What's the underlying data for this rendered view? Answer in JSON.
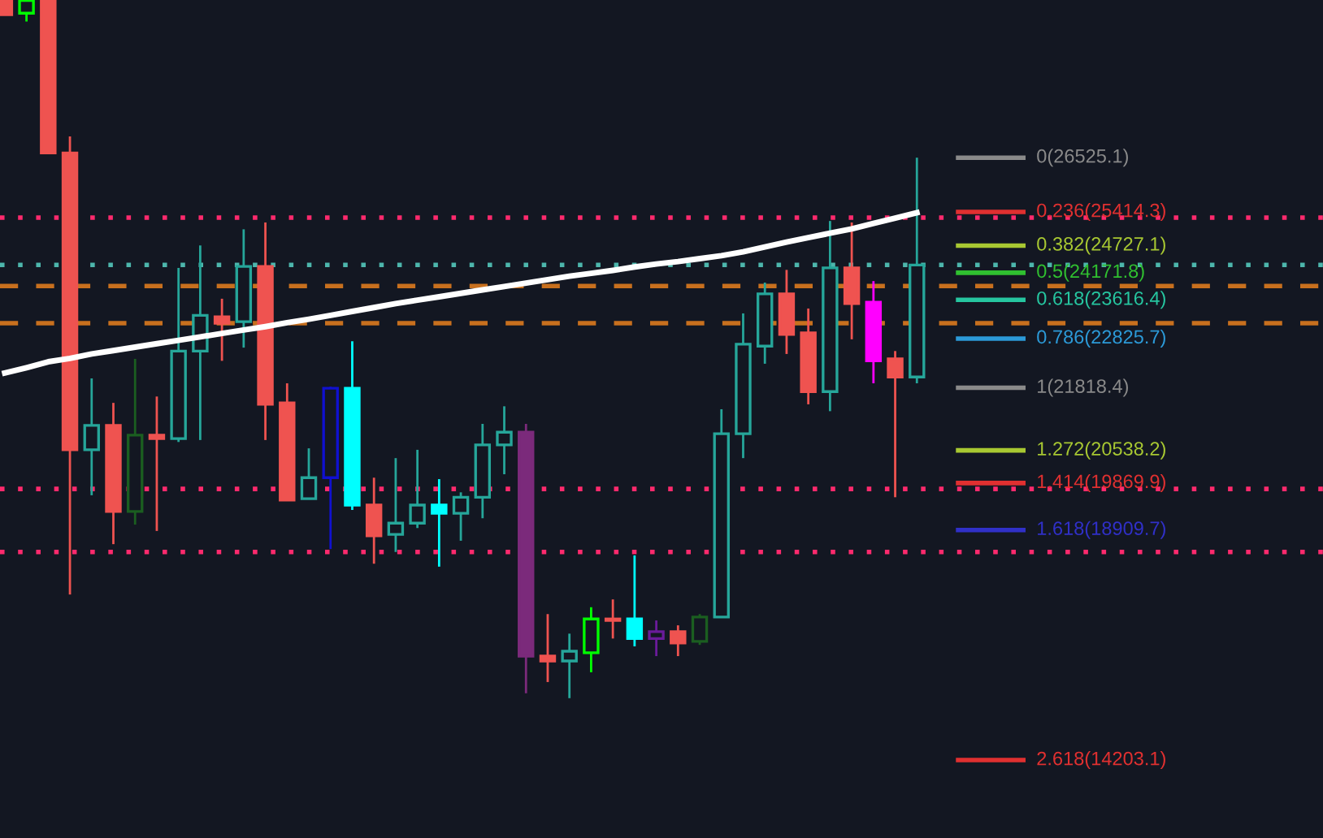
{
  "chart_data": {
    "type": "candlestick",
    "categories": [
      null,
      null,
      null,
      null,
      null,
      null,
      null,
      null,
      null,
      null,
      null,
      null,
      null,
      null,
      null,
      null,
      null,
      null,
      null,
      null,
      null,
      null,
      null,
      null,
      null,
      null,
      null,
      null,
      null,
      null,
      null,
      null,
      null,
      null,
      null,
      null,
      null,
      null,
      null,
      null,
      null,
      null,
      null
    ],
    "ohlc": [
      [
        29740,
        29740,
        29450,
        29450
      ],
      [
        29480,
        29740,
        29310,
        29740
      ],
      [
        29740,
        29740,
        26620,
        26620
      ],
      [
        26620,
        26960,
        17590,
        20550
      ],
      [
        20550,
        22010,
        19620,
        21050
      ],
      [
        21050,
        21510,
        18620,
        19290
      ],
      [
        19290,
        22410,
        19020,
        20850
      ],
      [
        20850,
        21640,
        18890,
        20780
      ],
      [
        20780,
        24270,
        20710,
        22570
      ],
      [
        22570,
        24730,
        20750,
        23300
      ],
      [
        23270,
        23640,
        22370,
        23140
      ],
      [
        23170,
        25060,
        22640,
        24300
      ],
      [
        24300,
        25200,
        20750,
        21480
      ],
      [
        21510,
        21910,
        19520,
        19520
      ],
      [
        19550,
        20580,
        19550,
        19980
      ],
      [
        19980,
        21840,
        18520,
        21810
      ],
      [
        21810,
        22770,
        19320,
        19420
      ],
      [
        19420,
        19980,
        18220,
        18790
      ],
      [
        18820,
        20380,
        18460,
        19050
      ],
      [
        19050,
        20550,
        18950,
        19420
      ],
      [
        19420,
        19950,
        18160,
        19250
      ],
      [
        19250,
        19680,
        18690,
        19580
      ],
      [
        19580,
        21080,
        19150,
        20650
      ],
      [
        20650,
        21440,
        20050,
        20910
      ],
      [
        20910,
        21080,
        15570,
        16330
      ],
      [
        16330,
        17190,
        15800,
        16230
      ],
      [
        16230,
        16790,
        15470,
        16430
      ],
      [
        16400,
        17330,
        16000,
        17090
      ],
      [
        17090,
        17490,
        16690,
        17060
      ],
      [
        17090,
        18390,
        16530,
        16690
      ],
      [
        16690,
        17060,
        16330,
        16830
      ],
      [
        16830,
        16960,
        16330,
        16600
      ],
      [
        16630,
        17190,
        16560,
        17130
      ],
      [
        17130,
        21380,
        17130,
        20880
      ],
      [
        20880,
        23340,
        20380,
        22710
      ],
      [
        22670,
        23970,
        22310,
        23740
      ],
      [
        23740,
        24230,
        22510,
        22910
      ],
      [
        22940,
        23440,
        21480,
        21740
      ],
      [
        21740,
        25230,
        21340,
        24270
      ],
      [
        24270,
        25200,
        22810,
        23540
      ],
      [
        23570,
        24000,
        21910,
        22370
      ],
      [
        22410,
        22570,
        19580,
        22040
      ],
      [
        22040,
        26525,
        21910,
        24330
      ]
    ],
    "colors": [
      "#ef5350",
      "#00ff00",
      "#ef5350",
      "#ef5350",
      "#26a69a",
      "#ef5350",
      "#1b5e20",
      "#ef5350",
      "#26a69a",
      "#26a69a",
      "#ef5350",
      "#26a69a",
      "#ef5350",
      "#ef5350",
      "#26a69a",
      "#1010d0",
      "#00ffff",
      "#ef5350",
      "#26a69a",
      "#26a69a",
      "#00ffff",
      "#26a69a",
      "#26a69a",
      "#26a69a",
      "#7b2a7b",
      "#ef5350",
      "#26a69a",
      "#00ff00",
      "#ef5350",
      "#00ffff",
      "#6a1b9a",
      "#ef5350",
      "#1b5e20",
      "#26a69a",
      "#26a69a",
      "#26a69a",
      "#ef5350",
      "#ef5350",
      "#26a69a",
      "#ef5350",
      "#ff00ff",
      "#ef5350",
      "#26a69a"
    ],
    "series": [
      {
        "type": "line",
        "color": "#ffffff",
        "values": [
          22120,
          22230,
          22350,
          22420,
          22510,
          22580,
          22650,
          22720,
          22790,
          22860,
          22930,
          23000,
          23070,
          23150,
          23220,
          23300,
          23380,
          23460,
          23540,
          23610,
          23680,
          23750,
          23820,
          23890,
          23960,
          24030,
          24100,
          24160,
          24220,
          24290,
          24350,
          24400,
          24460,
          24520,
          24600,
          24700,
          24800,
          24890,
          24980,
          25070,
          25180,
          25290,
          25400
        ]
      }
    ],
    "ylim": [
      12610,
      29750
    ],
    "ref_lines": [
      {
        "axis": "y",
        "value": 25300,
        "color": "#ff2a6d",
        "line_style": "dotted"
      },
      {
        "axis": "y",
        "value": 19750,
        "color": "#ff2a6d",
        "line_style": "dotted"
      },
      {
        "axis": "y",
        "value": 18460,
        "color": "#ff2a6d",
        "line_style": "dotted"
      },
      {
        "axis": "y",
        "value": 23900,
        "color": "#c8701e",
        "line_style": "dashed"
      },
      {
        "axis": "y",
        "value": 23140,
        "color": "#c8701e",
        "line_style": "dashed"
      },
      {
        "axis": "y",
        "value": 24330,
        "color": "#4db6ac",
        "line_style": "dotted"
      },
      {
        "axis": "y",
        "value": 26525.1,
        "label": "0(26525.1)",
        "color": "#8a8a8a"
      },
      {
        "axis": "y",
        "value": 25414.3,
        "label": "0.236(25414.3)",
        "color": "#e03030"
      },
      {
        "axis": "y",
        "value": 24727.1,
        "label": "0.382(24727.1)",
        "color": "#a8c832"
      },
      {
        "axis": "y",
        "value": 24171.8,
        "label": "0.5(24171.8)",
        "color": "#30c030"
      },
      {
        "axis": "y",
        "value": 23616.4,
        "label": "0.618(23616.4)",
        "color": "#26c6a0"
      },
      {
        "axis": "y",
        "value": 22825.7,
        "label": "0.786(22825.7)",
        "color": "#2c9ad8"
      },
      {
        "axis": "y",
        "value": 21818.4,
        "label": "1(21818.4)",
        "color": "#8a8a8a"
      },
      {
        "axis": "y",
        "value": 20538.2,
        "label": "1.272(20538.2)",
        "color": "#a8c832"
      },
      {
        "axis": "y",
        "value": 19869.9,
        "label": "1.414(19869.9)",
        "color": "#e03030"
      },
      {
        "axis": "y",
        "value": 18909.7,
        "label": "1.618(18909.7)",
        "color": "#3030c8"
      },
      {
        "axis": "y",
        "value": 14203.1,
        "label": "2.618(14203.1)",
        "color": "#e03030"
      }
    ]
  }
}
